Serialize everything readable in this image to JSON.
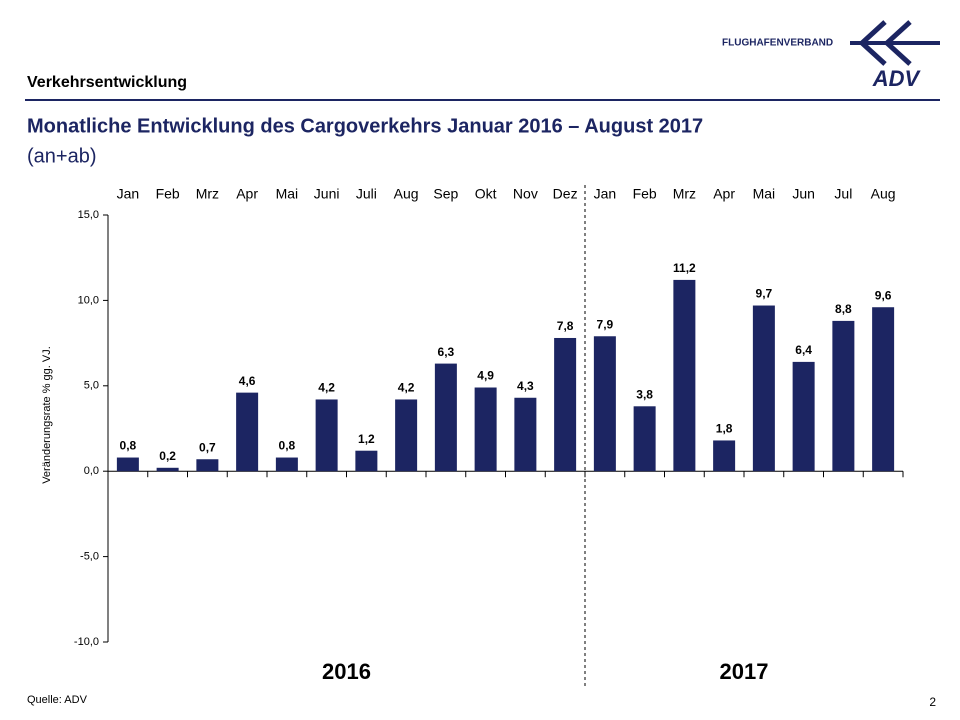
{
  "header": {
    "section": "Verkehrsentwicklung",
    "logo_text": "FLUGHAFENVERBAND",
    "logo_mark": "ADV"
  },
  "chart_data": {
    "type": "bar",
    "title": "Monatliche Entwicklung des Cargoverkehrs Januar 2016 – August 2017",
    "subtitle": "(an+ab)",
    "y_label": "Veränderungsrate % gg. VJ.",
    "categories": [
      "Jan",
      "Feb",
      "Mrz",
      "Apr",
      "Mai",
      "Juni",
      "Juli",
      "Aug",
      "Sep",
      "Okt",
      "Nov",
      "Dez",
      "Jan",
      "Feb",
      "Mrz",
      "Apr",
      "Mai",
      "Jun",
      "Jul",
      "Aug"
    ],
    "values": [
      0.8,
      0.2,
      0.7,
      4.6,
      0.8,
      4.2,
      1.2,
      4.2,
      6.3,
      4.9,
      4.3,
      7.8,
      7.9,
      3.8,
      11.2,
      1.8,
      9.7,
      6.4,
      8.8,
      9.6
    ],
    "value_labels": [
      "0,8",
      "0,2",
      "0,7",
      "4,6",
      "0,8",
      "4,2",
      "1,2",
      "4,2",
      "6,3",
      "4,9",
      "4,3",
      "7,8",
      "7,9",
      "3,8",
      "11,2",
      "1,8",
      "9,7",
      "6,4",
      "8,8",
      "9,6"
    ],
    "group_labels": [
      "2016",
      "2017"
    ],
    "color": "#1c2562",
    "ylim": [
      -10,
      15
    ],
    "yticks": [
      {
        "value": -10,
        "label": "-10,0"
      },
      {
        "value": -5,
        "label": "-5,0"
      },
      {
        "value": 0,
        "label": "0,0"
      },
      {
        "value": 5,
        "label": "5,0"
      },
      {
        "value": 10,
        "label": "10,0"
      },
      {
        "value": 15,
        "label": "15,0"
      }
    ],
    "grid": false
  },
  "footer": {
    "source": "Quelle: ADV",
    "page": "2"
  }
}
